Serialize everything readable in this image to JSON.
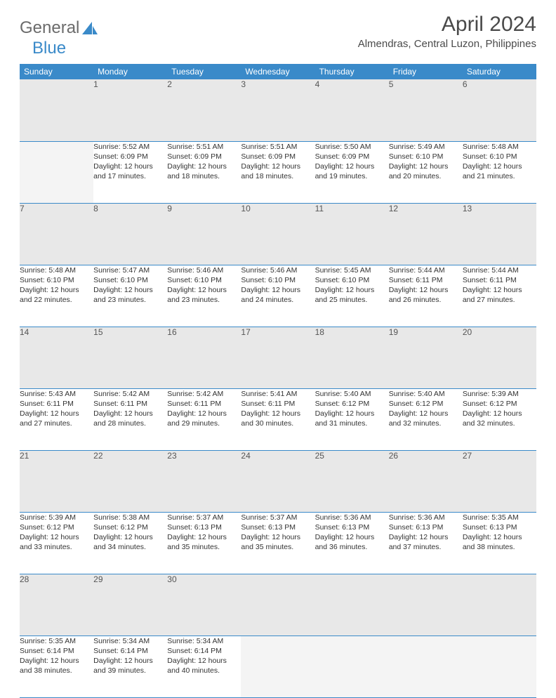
{
  "logo": {
    "word1": "General",
    "word2": "Blue"
  },
  "title": "April 2024",
  "location": "Almendras, Central Luzon, Philippines",
  "colors": {
    "header_bg": "#3a8ac9",
    "header_fg": "#ffffff",
    "daynum_bg": "#e8e8e8",
    "empty_bg": "#f4f4f4",
    "rule": "#3a8ac9",
    "text": "#333333",
    "logo_gray": "#6b6b6b",
    "logo_blue": "#3a8ac9"
  },
  "weekdays": [
    "Sunday",
    "Monday",
    "Tuesday",
    "Wednesday",
    "Thursday",
    "Friday",
    "Saturday"
  ],
  "weeks": [
    [
      null,
      {
        "n": "1",
        "sr": "Sunrise: 5:52 AM",
        "ss": "Sunset: 6:09 PM",
        "d1": "Daylight: 12 hours",
        "d2": "and 17 minutes."
      },
      {
        "n": "2",
        "sr": "Sunrise: 5:51 AM",
        "ss": "Sunset: 6:09 PM",
        "d1": "Daylight: 12 hours",
        "d2": "and 18 minutes."
      },
      {
        "n": "3",
        "sr": "Sunrise: 5:51 AM",
        "ss": "Sunset: 6:09 PM",
        "d1": "Daylight: 12 hours",
        "d2": "and 18 minutes."
      },
      {
        "n": "4",
        "sr": "Sunrise: 5:50 AM",
        "ss": "Sunset: 6:09 PM",
        "d1": "Daylight: 12 hours",
        "d2": "and 19 minutes."
      },
      {
        "n": "5",
        "sr": "Sunrise: 5:49 AM",
        "ss": "Sunset: 6:10 PM",
        "d1": "Daylight: 12 hours",
        "d2": "and 20 minutes."
      },
      {
        "n": "6",
        "sr": "Sunrise: 5:48 AM",
        "ss": "Sunset: 6:10 PM",
        "d1": "Daylight: 12 hours",
        "d2": "and 21 minutes."
      }
    ],
    [
      {
        "n": "7",
        "sr": "Sunrise: 5:48 AM",
        "ss": "Sunset: 6:10 PM",
        "d1": "Daylight: 12 hours",
        "d2": "and 22 minutes."
      },
      {
        "n": "8",
        "sr": "Sunrise: 5:47 AM",
        "ss": "Sunset: 6:10 PM",
        "d1": "Daylight: 12 hours",
        "d2": "and 23 minutes."
      },
      {
        "n": "9",
        "sr": "Sunrise: 5:46 AM",
        "ss": "Sunset: 6:10 PM",
        "d1": "Daylight: 12 hours",
        "d2": "and 23 minutes."
      },
      {
        "n": "10",
        "sr": "Sunrise: 5:46 AM",
        "ss": "Sunset: 6:10 PM",
        "d1": "Daylight: 12 hours",
        "d2": "and 24 minutes."
      },
      {
        "n": "11",
        "sr": "Sunrise: 5:45 AM",
        "ss": "Sunset: 6:10 PM",
        "d1": "Daylight: 12 hours",
        "d2": "and 25 minutes."
      },
      {
        "n": "12",
        "sr": "Sunrise: 5:44 AM",
        "ss": "Sunset: 6:11 PM",
        "d1": "Daylight: 12 hours",
        "d2": "and 26 minutes."
      },
      {
        "n": "13",
        "sr": "Sunrise: 5:44 AM",
        "ss": "Sunset: 6:11 PM",
        "d1": "Daylight: 12 hours",
        "d2": "and 27 minutes."
      }
    ],
    [
      {
        "n": "14",
        "sr": "Sunrise: 5:43 AM",
        "ss": "Sunset: 6:11 PM",
        "d1": "Daylight: 12 hours",
        "d2": "and 27 minutes."
      },
      {
        "n": "15",
        "sr": "Sunrise: 5:42 AM",
        "ss": "Sunset: 6:11 PM",
        "d1": "Daylight: 12 hours",
        "d2": "and 28 minutes."
      },
      {
        "n": "16",
        "sr": "Sunrise: 5:42 AM",
        "ss": "Sunset: 6:11 PM",
        "d1": "Daylight: 12 hours",
        "d2": "and 29 minutes."
      },
      {
        "n": "17",
        "sr": "Sunrise: 5:41 AM",
        "ss": "Sunset: 6:11 PM",
        "d1": "Daylight: 12 hours",
        "d2": "and 30 minutes."
      },
      {
        "n": "18",
        "sr": "Sunrise: 5:40 AM",
        "ss": "Sunset: 6:12 PM",
        "d1": "Daylight: 12 hours",
        "d2": "and 31 minutes."
      },
      {
        "n": "19",
        "sr": "Sunrise: 5:40 AM",
        "ss": "Sunset: 6:12 PM",
        "d1": "Daylight: 12 hours",
        "d2": "and 32 minutes."
      },
      {
        "n": "20",
        "sr": "Sunrise: 5:39 AM",
        "ss": "Sunset: 6:12 PM",
        "d1": "Daylight: 12 hours",
        "d2": "and 32 minutes."
      }
    ],
    [
      {
        "n": "21",
        "sr": "Sunrise: 5:39 AM",
        "ss": "Sunset: 6:12 PM",
        "d1": "Daylight: 12 hours",
        "d2": "and 33 minutes."
      },
      {
        "n": "22",
        "sr": "Sunrise: 5:38 AM",
        "ss": "Sunset: 6:12 PM",
        "d1": "Daylight: 12 hours",
        "d2": "and 34 minutes."
      },
      {
        "n": "23",
        "sr": "Sunrise: 5:37 AM",
        "ss": "Sunset: 6:13 PM",
        "d1": "Daylight: 12 hours",
        "d2": "and 35 minutes."
      },
      {
        "n": "24",
        "sr": "Sunrise: 5:37 AM",
        "ss": "Sunset: 6:13 PM",
        "d1": "Daylight: 12 hours",
        "d2": "and 35 minutes."
      },
      {
        "n": "25",
        "sr": "Sunrise: 5:36 AM",
        "ss": "Sunset: 6:13 PM",
        "d1": "Daylight: 12 hours",
        "d2": "and 36 minutes."
      },
      {
        "n": "26",
        "sr": "Sunrise: 5:36 AM",
        "ss": "Sunset: 6:13 PM",
        "d1": "Daylight: 12 hours",
        "d2": "and 37 minutes."
      },
      {
        "n": "27",
        "sr": "Sunrise: 5:35 AM",
        "ss": "Sunset: 6:13 PM",
        "d1": "Daylight: 12 hours",
        "d2": "and 38 minutes."
      }
    ],
    [
      {
        "n": "28",
        "sr": "Sunrise: 5:35 AM",
        "ss": "Sunset: 6:14 PM",
        "d1": "Daylight: 12 hours",
        "d2": "and 38 minutes."
      },
      {
        "n": "29",
        "sr": "Sunrise: 5:34 AM",
        "ss": "Sunset: 6:14 PM",
        "d1": "Daylight: 12 hours",
        "d2": "and 39 minutes."
      },
      {
        "n": "30",
        "sr": "Sunrise: 5:34 AM",
        "ss": "Sunset: 6:14 PM",
        "d1": "Daylight: 12 hours",
        "d2": "and 40 minutes."
      },
      null,
      null,
      null,
      null
    ]
  ]
}
